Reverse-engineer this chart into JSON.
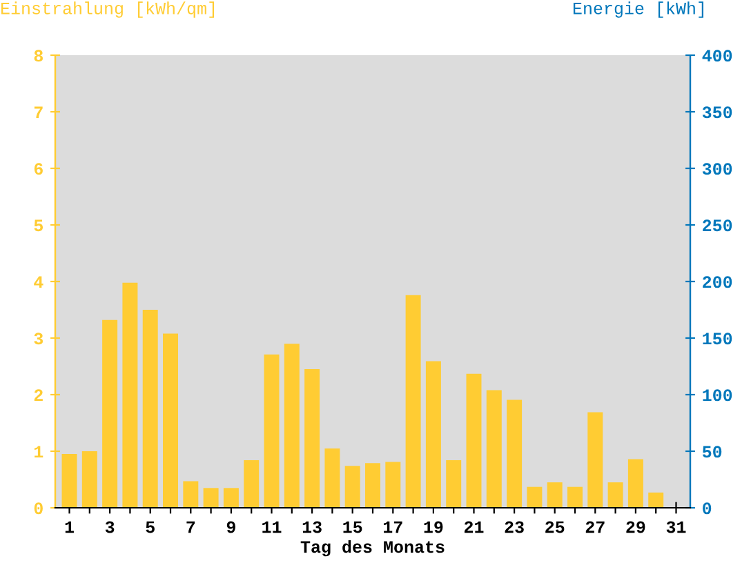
{
  "chart_data": {
    "type": "bar",
    "xlabel": "Tag des Monats",
    "ylabel": "Einstrahlung [kWh/qm]",
    "y2label": "Energie [kWh]",
    "categories": [
      "1",
      null,
      "3",
      null,
      "5",
      null,
      "7",
      null,
      "9",
      null,
      "11",
      null,
      "13",
      null,
      "15",
      null,
      "17",
      null,
      "19",
      null,
      "21",
      null,
      "23",
      null,
      "25",
      null,
      "27",
      null,
      "29",
      null,
      "31"
    ],
    "series": [
      {
        "color": "#ffcc33",
        "values": [
          0.95,
          1.0,
          3.32,
          3.98,
          3.5,
          3.08,
          0.47,
          0.35,
          0.35,
          0.84,
          2.71,
          2.9,
          2.45,
          1.05,
          0.74,
          0.79,
          0.81,
          3.76,
          2.59,
          0.84,
          2.37,
          2.08,
          1.91,
          0.37,
          0.45,
          0.37,
          1.69,
          0.45,
          0.86,
          0.27,
          null
        ]
      }
    ],
    "ylim": [
      0,
      8
    ],
    "yticks": [
      0,
      1,
      2,
      3,
      4,
      5,
      6,
      7,
      8
    ],
    "y2lim": [
      0,
      400
    ],
    "y2ticks": [
      0,
      50,
      100,
      150,
      200,
      250,
      300,
      350,
      400
    ],
    "grid": false,
    "legend": false
  }
}
